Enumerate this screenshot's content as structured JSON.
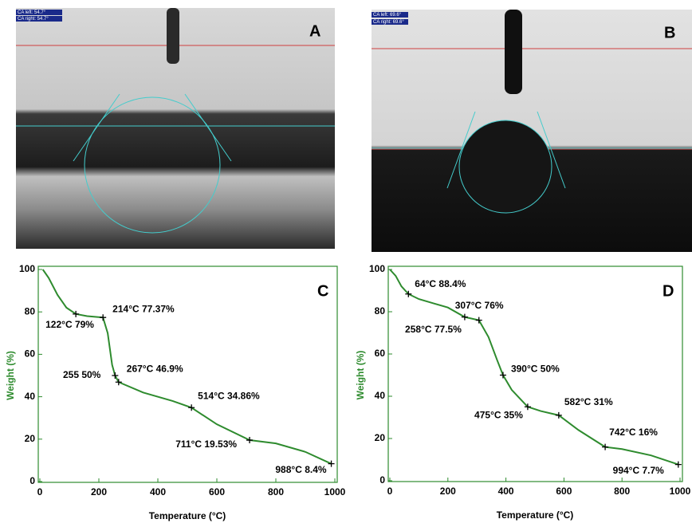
{
  "photos": [
    {
      "label": "A",
      "ca_left": "CA left: 54.7°",
      "ca_right": "CA right: 54.7°"
    },
    {
      "label": "B",
      "ca_left": "CA left: 69.6°",
      "ca_right": "CA right: 69.6°"
    }
  ],
  "chart_data": [
    {
      "type": "line",
      "panel_label": "C",
      "xlabel": "Temperature (°C)",
      "ylabel": "Weight (%)",
      "xlim": [
        0,
        1000
      ],
      "ylim": [
        0,
        100
      ],
      "xticks": [
        0,
        200,
        400,
        600,
        800,
        1000
      ],
      "yticks": [
        0,
        20,
        40,
        60,
        80,
        100
      ],
      "series": [
        {
          "color": "#2e8b2e",
          "x": [
            10,
            30,
            60,
            90,
            122,
            160,
            214,
            230,
            245,
            255,
            267,
            350,
            450,
            514,
            600,
            711,
            800,
            900,
            988
          ],
          "values": [
            100,
            96,
            88,
            82,
            79,
            78,
            77.37,
            70,
            55,
            50,
            46.9,
            42,
            38,
            34.86,
            27,
            19.53,
            18,
            14,
            8.4
          ]
        }
      ],
      "annotations": [
        {
          "text": "122°C 79%",
          "x": 122,
          "y": 79
        },
        {
          "text": "214°C  77.37%",
          "x": 214,
          "y": 77.37
        },
        {
          "text": "255  50%",
          "x": 255,
          "y": 50
        },
        {
          "text": "267°C  46.9%",
          "x": 267,
          "y": 46.9
        },
        {
          "text": "514°C  34.86%",
          "x": 514,
          "y": 34.86
        },
        {
          "text": "711°C 19.53%",
          "x": 711,
          "y": 19.53
        },
        {
          "text": "988°C 8.4%",
          "x": 988,
          "y": 8.4
        }
      ]
    },
    {
      "type": "line",
      "panel_label": "D",
      "xlabel": "Temperature (°C)",
      "ylabel": "Weight (%)",
      "xlim": [
        0,
        1000
      ],
      "ylim": [
        0,
        100
      ],
      "xticks": [
        0,
        200,
        400,
        600,
        800,
        1000
      ],
      "yticks": [
        0,
        20,
        40,
        60,
        80,
        100
      ],
      "series": [
        {
          "color": "#2e8b2e",
          "x": [
            0,
            20,
            40,
            64,
            100,
            150,
            200,
            258,
            307,
            340,
            370,
            390,
            420,
            475,
            520,
            582,
            650,
            742,
            800,
            900,
            994
          ],
          "values": [
            100,
            97,
            92,
            88.4,
            86,
            84,
            82,
            77.5,
            76,
            68,
            57,
            50,
            43,
            35,
            33,
            31,
            24,
            16,
            15,
            12,
            7.7
          ]
        }
      ],
      "annotations": [
        {
          "text": "64°C  88.4%",
          "x": 64,
          "y": 88.4
        },
        {
          "text": "258°C  77.5%",
          "x": 258,
          "y": 77.5
        },
        {
          "text": "307°C  76%",
          "x": 307,
          "y": 76
        },
        {
          "text": "390°C  50%",
          "x": 390,
          "y": 50
        },
        {
          "text": "475°C 35%",
          "x": 475,
          "y": 35
        },
        {
          "text": "582°C  31%",
          "x": 582,
          "y": 31
        },
        {
          "text": "742°C 16%",
          "x": 742,
          "y": 16
        },
        {
          "text": "994°C 7.7%",
          "x": 994,
          "y": 7.7
        }
      ]
    }
  ]
}
